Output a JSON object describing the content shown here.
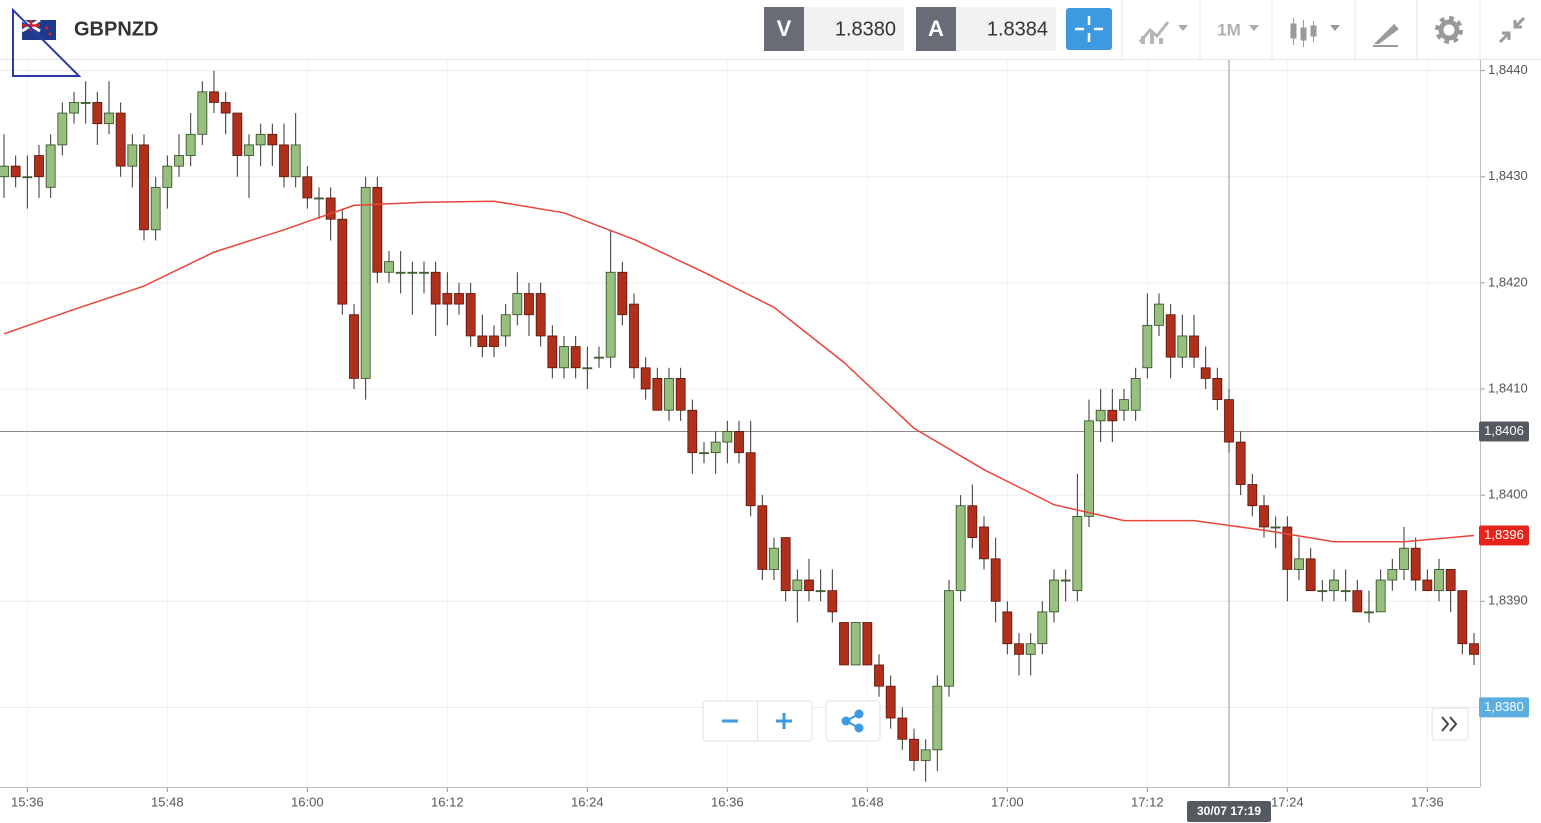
{
  "toolbar": {
    "symbol": "GBPNZD",
    "bid": {
      "label": "V",
      "value": "1.8380"
    },
    "ask": {
      "label": "A",
      "value": "1.8384"
    },
    "timeframe": "1M"
  },
  "chart_data": {
    "type": "candlestick",
    "x": [
      "15:34",
      "15:35",
      "15:36",
      "15:37",
      "15:38",
      "15:39",
      "15:40",
      "15:41",
      "15:42",
      "15:43",
      "15:44",
      "15:45",
      "15:46",
      "15:47",
      "15:48",
      "15:49",
      "15:50",
      "15:51",
      "15:52",
      "15:53",
      "15:54",
      "15:55",
      "15:56",
      "15:57",
      "15:58",
      "15:59",
      "16:00",
      "16:01",
      "16:02",
      "16:03",
      "16:04",
      "16:05",
      "16:06",
      "16:07",
      "16:08",
      "16:09",
      "16:10",
      "16:11",
      "16:12",
      "16:13",
      "16:14",
      "16:15",
      "16:16",
      "16:17",
      "16:18",
      "16:19",
      "16:20",
      "16:21",
      "16:22",
      "16:23",
      "16:24",
      "16:25",
      "16:26",
      "16:27",
      "16:28",
      "16:29",
      "16:30",
      "16:31",
      "16:32",
      "16:33",
      "16:34",
      "16:35",
      "16:36",
      "16:37",
      "16:38",
      "16:39",
      "16:40",
      "16:41",
      "16:42",
      "16:43",
      "16:44",
      "16:45",
      "16:46",
      "16:47",
      "16:48",
      "16:49",
      "16:50",
      "16:51",
      "16:52",
      "16:53",
      "16:54",
      "16:55",
      "16:56",
      "16:57",
      "16:58",
      "16:59",
      "17:00",
      "17:01",
      "17:02",
      "17:03",
      "17:04",
      "17:05",
      "17:06",
      "17:07",
      "17:08",
      "17:09",
      "17:10",
      "17:11",
      "17:12",
      "17:13",
      "17:14",
      "17:15",
      "17:16",
      "17:17",
      "17:18",
      "17:19",
      "17:20",
      "17:21",
      "17:22",
      "17:23",
      "17:24",
      "17:25",
      "17:26",
      "17:27",
      "17:28",
      "17:29",
      "17:30",
      "17:31",
      "17:32",
      "17:33",
      "17:34",
      "17:35",
      "17:36",
      "17:37",
      "17:38",
      "17:39",
      "17:40"
    ],
    "open": [
      1.843,
      1.8431,
      1.843,
      1.8432,
      1.8429,
      1.8433,
      1.8436,
      1.8437,
      1.8437,
      1.8435,
      1.8436,
      1.8431,
      1.8433,
      1.8425,
      1.8429,
      1.8431,
      1.8432,
      1.8434,
      1.8438,
      1.8437,
      1.8436,
      1.8432,
      1.8433,
      1.8434,
      1.8433,
      1.843,
      1.843,
      1.8428,
      1.8428,
      1.8426,
      1.8417,
      1.8411,
      1.8429,
      1.8421,
      1.8421,
      1.8421,
      1.8421,
      1.8421,
      1.8419,
      1.8419,
      1.8419,
      1.8415,
      1.8415,
      1.8415,
      1.8417,
      1.8419,
      1.8419,
      1.8415,
      1.8412,
      1.8414,
      1.8412,
      1.8413,
      1.8413,
      1.8421,
      1.8418,
      1.8412,
      1.8411,
      1.8408,
      1.8411,
      1.8408,
      1.8404,
      1.8404,
      1.8405,
      1.8406,
      1.8404,
      1.8399,
      1.8393,
      1.8396,
      1.8391,
      1.8392,
      1.8391,
      1.8391,
      1.8388,
      1.8384,
      1.8388,
      1.8384,
      1.8382,
      1.8379,
      1.8377,
      1.8375,
      1.8376,
      1.8382,
      1.8391,
      1.8399,
      1.8397,
      1.8394,
      1.8389,
      1.8386,
      1.8385,
      1.8386,
      1.8389,
      1.8392,
      1.8391,
      1.8398,
      1.8407,
      1.8408,
      1.8408,
      1.8408,
      1.8412,
      1.8416,
      1.8417,
      1.8413,
      1.8415,
      1.8412,
      1.8411,
      1.8409,
      1.8405,
      1.8401,
      1.8399,
      1.8397,
      1.8397,
      1.8393,
      1.8394,
      1.8391,
      1.8391,
      1.8391,
      1.8391,
      1.8389,
      1.8389,
      1.8392,
      1.8393,
      1.8395,
      1.8392,
      1.8391,
      1.8393,
      1.8391,
      1.8386
    ],
    "high": [
      1.8434,
      1.8432,
      1.8432,
      1.8433,
      1.8434,
      1.8437,
      1.8438,
      1.8439,
      1.8438,
      1.8439,
      1.8437,
      1.8434,
      1.8434,
      1.843,
      1.8432,
      1.8434,
      1.8436,
      1.8439,
      1.844,
      1.8438,
      1.8436,
      1.8434,
      1.8435,
      1.8435,
      1.8435,
      1.8436,
      1.8431,
      1.8429,
      1.8429,
      1.8427,
      1.8418,
      1.843,
      1.843,
      1.8423,
      1.8423,
      1.8422,
      1.8422,
      1.8422,
      1.8421,
      1.842,
      1.842,
      1.8417,
      1.8416,
      1.8418,
      1.8421,
      1.842,
      1.842,
      1.8416,
      1.8415,
      1.8415,
      1.8414,
      1.8414,
      1.8425,
      1.8422,
      1.8419,
      1.8413,
      1.8412,
      1.8412,
      1.8412,
      1.8409,
      1.8405,
      1.8406,
      1.8407,
      1.8407,
      1.8407,
      1.84,
      1.8396,
      1.8396,
      1.8393,
      1.8394,
      1.8393,
      1.8393,
      1.8388,
      1.8388,
      1.8388,
      1.8385,
      1.8383,
      1.838,
      1.8378,
      1.8377,
      1.8383,
      1.8392,
      1.84,
      1.8401,
      1.8398,
      1.8396,
      1.839,
      1.8387,
      1.8387,
      1.839,
      1.8393,
      1.8393,
      1.8402,
      1.8409,
      1.841,
      1.841,
      1.841,
      1.8412,
      1.8419,
      1.8419,
      1.8418,
      1.8417,
      1.8417,
      1.8414,
      1.8412,
      1.841,
      1.8406,
      1.8402,
      1.84,
      1.8398,
      1.8398,
      1.8396,
      1.8395,
      1.8392,
      1.8393,
      1.8393,
      1.8392,
      1.8391,
      1.8393,
      1.8394,
      1.8397,
      1.8396,
      1.8393,
      1.8394,
      1.8393,
      1.8391,
      1.8387
    ],
    "low": [
      1.8428,
      1.8429,
      1.8427,
      1.8428,
      1.8428,
      1.8432,
      1.8435,
      1.8435,
      1.8433,
      1.8434,
      1.843,
      1.8429,
      1.8424,
      1.8424,
      1.8427,
      1.843,
      1.8431,
      1.8433,
      1.8436,
      1.8434,
      1.843,
      1.8428,
      1.8431,
      1.8431,
      1.8429,
      1.8429,
      1.8427,
      1.8426,
      1.8424,
      1.8417,
      1.841,
      1.8409,
      1.842,
      1.842,
      1.8419,
      1.8417,
      1.8419,
      1.8415,
      1.8416,
      1.8417,
      1.8414,
      1.8413,
      1.8413,
      1.8414,
      1.8416,
      1.8415,
      1.8414,
      1.8411,
      1.8411,
      1.8411,
      1.841,
      1.8412,
      1.8412,
      1.8416,
      1.8411,
      1.8409,
      1.8408,
      1.8407,
      1.8407,
      1.8402,
      1.8403,
      1.8402,
      1.8403,
      1.8403,
      1.8398,
      1.8392,
      1.8392,
      1.839,
      1.8388,
      1.839,
      1.839,
      1.8388,
      1.8384,
      1.8384,
      1.8384,
      1.8381,
      1.8378,
      1.8376,
      1.8374,
      1.8373,
      1.8374,
      1.8381,
      1.839,
      1.8395,
      1.8393,
      1.8388,
      1.8385,
      1.8383,
      1.8383,
      1.8385,
      1.8388,
      1.839,
      1.839,
      1.8397,
      1.8405,
      1.8405,
      1.8407,
      1.8407,
      1.8411,
      1.8415,
      1.8411,
      1.8412,
      1.8412,
      1.841,
      1.8408,
      1.8404,
      1.84,
      1.8398,
      1.8396,
      1.8395,
      1.839,
      1.8392,
      1.8391,
      1.839,
      1.839,
      1.839,
      1.8389,
      1.8388,
      1.8389,
      1.8391,
      1.8392,
      1.8391,
      1.8391,
      1.839,
      1.8389,
      1.8385,
      1.8384
    ],
    "close": [
      1.8431,
      1.843,
      1.843,
      1.843,
      1.8433,
      1.8436,
      1.8437,
      1.8437,
      1.8435,
      1.8436,
      1.8431,
      1.8433,
      1.8425,
      1.8429,
      1.8431,
      1.8432,
      1.8434,
      1.8438,
      1.8437,
      1.8436,
      1.8432,
      1.8433,
      1.8434,
      1.8433,
      1.843,
      1.8433,
      1.8428,
      1.8428,
      1.8426,
      1.8418,
      1.8411,
      1.8429,
      1.8421,
      1.8422,
      1.8421,
      1.8421,
      1.8421,
      1.8418,
      1.8418,
      1.8418,
      1.8415,
      1.8414,
      1.8414,
      1.8417,
      1.8419,
      1.8417,
      1.8415,
      1.8412,
      1.8414,
      1.8412,
      1.8412,
      1.8413,
      1.8421,
      1.8417,
      1.8412,
      1.841,
      1.8408,
      1.8411,
      1.8408,
      1.8404,
      1.8404,
      1.8405,
      1.8406,
      1.8404,
      1.8399,
      1.8393,
      1.8395,
      1.8391,
      1.8392,
      1.8391,
      1.8391,
      1.8389,
      1.8384,
      1.8388,
      1.8384,
      1.8382,
      1.8379,
      1.8377,
      1.8375,
      1.8376,
      1.8382,
      1.8391,
      1.8399,
      1.8396,
      1.8394,
      1.839,
      1.8386,
      1.8385,
      1.8386,
      1.8389,
      1.8392,
      1.8392,
      1.8398,
      1.8407,
      1.8408,
      1.8407,
      1.8409,
      1.8411,
      1.8416,
      1.8418,
      1.8413,
      1.8415,
      1.8413,
      1.8411,
      1.8409,
      1.8405,
      1.8401,
      1.8399,
      1.8397,
      1.8397,
      1.8393,
      1.8394,
      1.8391,
      1.8391,
      1.8392,
      1.8391,
      1.8389,
      1.8389,
      1.8392,
      1.8393,
      1.8395,
      1.8392,
      1.8391,
      1.8393,
      1.8391,
      1.8386,
      1.8385
    ],
    "up_color": "#97c07f",
    "down_color": "#b0301c",
    "moving_average": {
      "color": "#e8453c",
      "x": [
        "15:34",
        "15:40",
        "15:46",
        "15:52",
        "15:58",
        "16:04",
        "16:10",
        "16:16",
        "16:22",
        "16:28",
        "16:34",
        "16:40",
        "16:46",
        "16:52",
        "16:58",
        "17:04",
        "17:10",
        "17:16",
        "17:22",
        "17:28",
        "17:34",
        "17:40"
      ],
      "values": [
        1.84152,
        1.84175,
        1.84197,
        1.84229,
        1.8425,
        1.84273,
        1.84276,
        1.84277,
        1.84266,
        1.84241,
        1.8421,
        1.84177,
        1.84125,
        1.84063,
        1.84024,
        1.83991,
        1.83976,
        1.83976,
        1.83967,
        1.83956,
        1.83956,
        1.83962
      ]
    },
    "xlim": [
      "15:34",
      "17:40"
    ],
    "xticks": [
      "15:36",
      "15:48",
      "16:00",
      "16:12",
      "16:24",
      "16:36",
      "16:48",
      "17:00",
      "17:12",
      "17:24",
      "17:36"
    ],
    "ylim": [
      1.83725,
      1.8441
    ],
    "yticks": [
      {
        "value": 1.838,
        "label": "1,8380"
      },
      {
        "value": 1.839,
        "label": "1,8390"
      },
      {
        "value": 1.84,
        "label": "1,8400"
      },
      {
        "value": 1.841,
        "label": "1,8410"
      },
      {
        "value": 1.842,
        "label": "1,8420"
      },
      {
        "value": 1.843,
        "label": "1,8430"
      },
      {
        "value": 1.844,
        "label": "1,8440"
      }
    ],
    "grid": true,
    "price_labels": [
      {
        "value": 1.8406,
        "label": "1,8406",
        "color": "#555a61"
      },
      {
        "value": 1.83962,
        "label": "1,8396",
        "color": "#e8231c"
      },
      {
        "value": 1.838,
        "label": "1,8380",
        "color": "#5aaee0"
      }
    ],
    "crosshair": {
      "x": "17:19",
      "x_label": "30/07 17:19",
      "y": 1.8406
    }
  }
}
